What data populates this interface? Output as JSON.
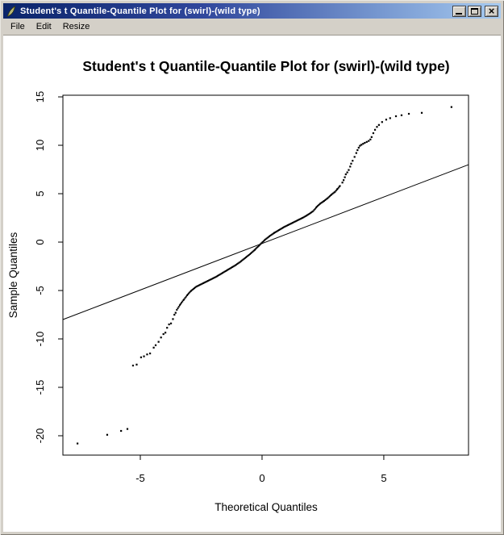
{
  "window": {
    "title": "Student's t Quantile-Quantile Plot for (swirl)-(wild type)",
    "icon": "quill-feather-icon",
    "controls": {
      "minimize": "Minimize",
      "maximize": "Maximize",
      "close": "Close",
      "close_glyph": "×"
    }
  },
  "menu": {
    "items": [
      {
        "label": "File"
      },
      {
        "label": "Edit"
      },
      {
        "label": "Resize"
      }
    ]
  },
  "chart_data": {
    "type": "scatter",
    "subtype": "quantile-quantile-plot",
    "title": "Student's t Quantile-Quantile Plot for (swirl)-(wild type)",
    "xlabel": "Theoretical Quantiles",
    "ylabel": "Sample Quantiles",
    "xlim": [
      -8.18,
      8.48
    ],
    "ylim": [
      -22.0,
      15.17
    ],
    "x_ticks": [
      -5,
      0,
      5
    ],
    "y_ticks": [
      15,
      10,
      5,
      0,
      -5,
      -10,
      -15,
      -20
    ],
    "grid": false,
    "legend": null,
    "point_color": "#000000",
    "line_color": "#000000",
    "reference_line": {
      "x": [
        -8.18,
        8.48
      ],
      "y": [
        -8.0,
        8.0
      ]
    },
    "dense_curve": {
      "comment": "continuous thick band of overlapping points; interpolated at step below",
      "step": 0.04,
      "points": [
        [
          -3.5,
          -7.0
        ],
        [
          -3.35,
          -6.4
        ],
        [
          -3.2,
          -5.9
        ],
        [
          -3.05,
          -5.4
        ],
        [
          -2.9,
          -5.0
        ],
        [
          -2.7,
          -4.6
        ],
        [
          -2.5,
          -4.35
        ],
        [
          -2.3,
          -4.1
        ],
        [
          -2.1,
          -3.85
        ],
        [
          -1.9,
          -3.6
        ],
        [
          -1.7,
          -3.3
        ],
        [
          -1.5,
          -3.0
        ],
        [
          -1.3,
          -2.7
        ],
        [
          -1.1,
          -2.4
        ],
        [
          -0.9,
          -2.05
        ],
        [
          -0.7,
          -1.65
        ],
        [
          -0.5,
          -1.25
        ],
        [
          -0.3,
          -0.8
        ],
        [
          -0.1,
          -0.3
        ],
        [
          0.1,
          0.2
        ],
        [
          0.3,
          0.6
        ],
        [
          0.5,
          0.95
        ],
        [
          0.7,
          1.25
        ],
        [
          0.9,
          1.55
        ],
        [
          1.1,
          1.8
        ],
        [
          1.3,
          2.05
        ],
        [
          1.5,
          2.3
        ],
        [
          1.7,
          2.55
        ],
        [
          1.9,
          2.85
        ],
        [
          2.1,
          3.2
        ],
        [
          2.25,
          3.65
        ],
        [
          2.4,
          4.0
        ],
        [
          2.55,
          4.25
        ],
        [
          2.7,
          4.55
        ],
        [
          2.85,
          4.9
        ],
        [
          3.0,
          5.2
        ],
        [
          3.1,
          5.5
        ],
        [
          3.2,
          5.8
        ]
      ]
    },
    "sparse_points": [
      [
        -7.58,
        -20.8
      ],
      [
        -6.36,
        -19.9
      ],
      [
        -5.79,
        -19.5
      ],
      [
        -5.53,
        -19.3
      ],
      [
        -5.3,
        -12.75
      ],
      [
        -5.15,
        -12.65
      ],
      [
        -4.97,
        -11.9
      ],
      [
        -4.85,
        -11.8
      ],
      [
        -4.72,
        -11.6
      ],
      [
        -4.6,
        -11.5
      ],
      [
        -4.45,
        -10.9
      ],
      [
        -4.37,
        -10.65
      ],
      [
        -4.25,
        -10.3
      ],
      [
        -4.15,
        -9.85
      ],
      [
        -4.05,
        -9.5
      ],
      [
        -3.97,
        -9.35
      ],
      [
        -3.9,
        -8.85
      ],
      [
        -3.82,
        -8.5
      ],
      [
        -3.74,
        -8.4
      ],
      [
        -3.66,
        -7.95
      ],
      [
        -3.6,
        -7.5
      ],
      [
        -3.55,
        -7.3
      ],
      [
        3.3,
        6.15
      ],
      [
        3.35,
        6.4
      ],
      [
        3.4,
        6.7
      ],
      [
        3.44,
        7.0
      ],
      [
        3.5,
        7.2
      ],
      [
        3.56,
        7.45
      ],
      [
        3.62,
        7.8
      ],
      [
        3.66,
        8.1
      ],
      [
        3.72,
        8.4
      ],
      [
        3.8,
        8.8
      ],
      [
        3.87,
        9.2
      ],
      [
        3.92,
        9.5
      ],
      [
        3.97,
        9.75
      ],
      [
        4.02,
        9.95
      ],
      [
        4.08,
        10.05
      ],
      [
        4.15,
        10.15
      ],
      [
        4.22,
        10.25
      ],
      [
        4.3,
        10.35
      ],
      [
        4.38,
        10.45
      ],
      [
        4.45,
        10.6
      ],
      [
        4.5,
        10.85
      ],
      [
        4.57,
        11.25
      ],
      [
        4.64,
        11.6
      ],
      [
        4.72,
        11.9
      ],
      [
        4.8,
        12.1
      ],
      [
        4.93,
        12.4
      ],
      [
        5.1,
        12.65
      ],
      [
        5.26,
        12.8
      ],
      [
        5.5,
        13.0
      ],
      [
        5.73,
        13.1
      ],
      [
        6.03,
        13.25
      ],
      [
        6.56,
        13.35
      ],
      [
        7.78,
        13.95
      ]
    ]
  },
  "colors": {
    "titlebar_left": "#0a246a",
    "titlebar_right": "#a6caf0",
    "chrome": "#d4d0c8",
    "canvas": "#ffffff",
    "ink": "#000000"
  }
}
